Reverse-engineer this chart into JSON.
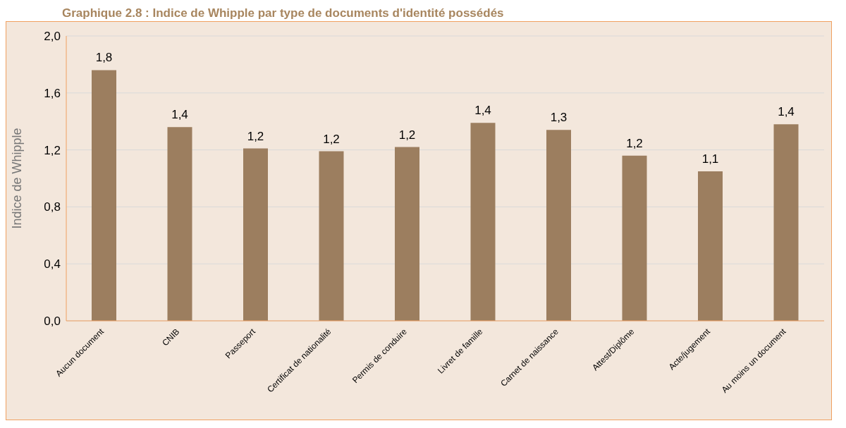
{
  "chart_data": {
    "type": "bar",
    "title": "Graphique  2.8 : Indice de Whipple par type de documents d'identité possédés",
    "ylabel": "Indice de Whipple",
    "categories": [
      "Aucun document",
      "CNIB",
      "Passeport",
      "Certificat de nationalité",
      "Permis de conduire",
      "Livret de famille",
      "Carnet de naissance",
      "Attest/Diplôme",
      "Acte/jugement",
      "Au moins un document"
    ],
    "values": [
      1.76,
      1.36,
      1.21,
      1.19,
      1.22,
      1.39,
      1.34,
      1.16,
      1.05,
      1.38
    ],
    "value_labels": [
      "1,8",
      "1,4",
      "1,2",
      "1,2",
      "1,2",
      "1,4",
      "1,3",
      "1,2",
      "1,1",
      "1,4"
    ],
    "color": "#9c7e5f",
    "ylim": [
      0,
      2
    ],
    "yticks": [
      {
        "value": 0,
        "label": "0,0"
      },
      {
        "value": 0.4,
        "label": "0,4"
      },
      {
        "value": 0.8,
        "label": "0,8"
      },
      {
        "value": 1.2,
        "label": "1,2"
      },
      {
        "value": 1.6,
        "label": "1,6"
      },
      {
        "value": 2,
        "label": "2,0"
      }
    ],
    "grid": "y",
    "legend": false
  }
}
